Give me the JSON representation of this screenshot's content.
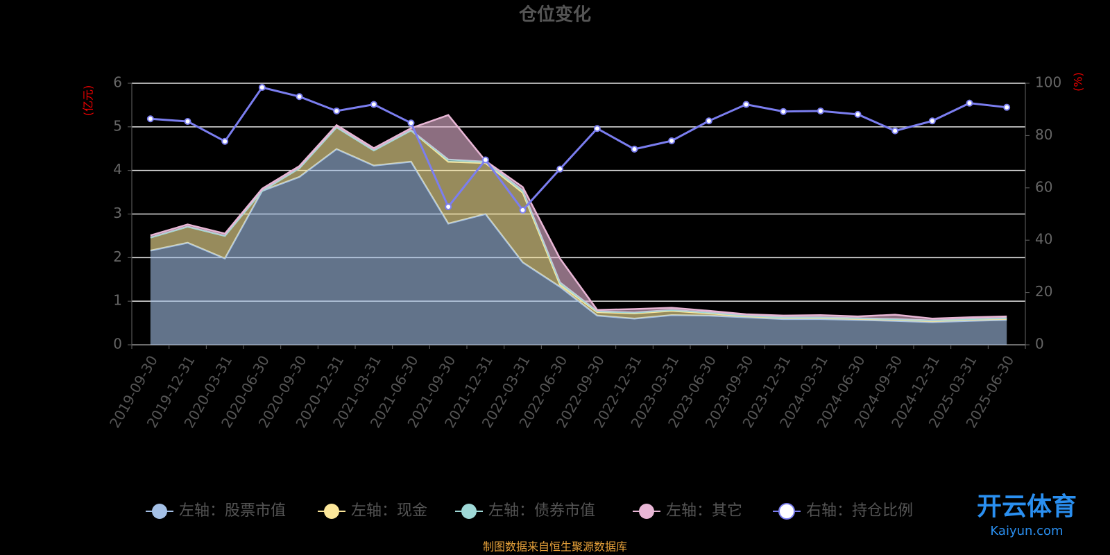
{
  "chart_data": {
    "type": "stacked-area-line",
    "title": "仓位变化",
    "y_axis_label": "(亿元)",
    "y2_axis_label": "(%)",
    "source": "制图数据来自恒生聚源数据库",
    "watermark": [
      "开云体育",
      "Kaiyun.com"
    ],
    "categories": [
      "2019-09-30",
      "2019-12-31",
      "2020-03-31",
      "2020-06-30",
      "2020-09-30",
      "2020-12-31",
      "2021-03-31",
      "2021-06-30",
      "2021-09-30",
      "2021-12-31",
      "2022-03-31",
      "2022-06-30",
      "2022-09-30",
      "2022-12-31",
      "2023-03-31",
      "2023-06-30",
      "2023-09-30",
      "2023-12-31",
      "2024-03-31",
      "2024-06-30",
      "2024-09-30",
      "2024-12-31",
      "2025-03-31",
      "2025-06-30"
    ],
    "ylim": [
      0,
      6
    ],
    "yticks": [
      0,
      1,
      2,
      3,
      4,
      5,
      6
    ],
    "y2lim": [
      0,
      100
    ],
    "y2ticks": [
      0,
      20,
      40,
      60,
      80,
      100
    ],
    "grid": true,
    "legend": "bottom",
    "series": [
      {
        "name": "左轴：股票市值",
        "color": "#a4c0e6",
        "stack": true,
        "values": [
          2.16,
          2.34,
          1.98,
          3.53,
          3.85,
          4.49,
          4.11,
          4.2,
          2.78,
          3.0,
          1.89,
          1.33,
          0.67,
          0.6,
          0.68,
          0.67,
          0.63,
          0.59,
          0.59,
          0.57,
          0.55,
          0.52,
          0.55,
          0.57
        ]
      },
      {
        "name": "左轴：现金",
        "color": "#fce79a",
        "stack": true,
        "values": [
          0.3,
          0.37,
          0.52,
          0.0,
          0.2,
          0.5,
          0.35,
          0.72,
          1.42,
          1.17,
          1.6,
          0.05,
          0.08,
          0.12,
          0.1,
          0.05,
          0.03,
          0.03,
          0.03,
          0.03,
          0.03,
          0.03,
          0.03,
          0.03
        ]
      },
      {
        "name": "左轴：债券市值",
        "color": "#9fd9d7",
        "stack": true,
        "values": [
          0,
          0,
          0,
          0,
          0,
          0,
          0,
          0,
          0.05,
          0.03,
          0.05,
          0.05,
          0.02,
          0.02,
          0.02,
          0.02,
          0.01,
          0.01,
          0.01,
          0.01,
          0.01,
          0.01,
          0.01,
          0.01
        ]
      },
      {
        "name": "左轴：其它",
        "color": "#e9b7d6",
        "stack": true,
        "values": [
          0.05,
          0.05,
          0.05,
          0.05,
          0.05,
          0.05,
          0.05,
          0.05,
          1.02,
          0.02,
          0.08,
          0.55,
          0.03,
          0.08,
          0.05,
          0.04,
          0.03,
          0.04,
          0.05,
          0.04,
          0.1,
          0.04,
          0.04,
          0.04
        ]
      },
      {
        "name": "右轴：持仓比例",
        "color": "#7b7ef0",
        "axis": "y2",
        "values": [
          86.4,
          85.4,
          77.8,
          98.4,
          94.9,
          89.4,
          91.9,
          84.8,
          52.8,
          70.7,
          51.5,
          67.2,
          82.7,
          74.8,
          78,
          85.6,
          91.9,
          89.2,
          89.4,
          88.1,
          81.8,
          85.6,
          92.4,
          90.8
        ]
      }
    ]
  }
}
